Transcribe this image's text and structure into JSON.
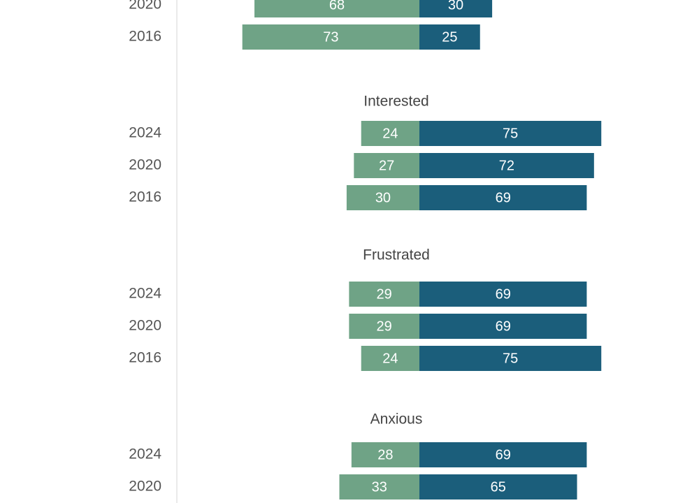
{
  "chart_data": {
    "type": "bar",
    "orientation": "horizontal-diverging",
    "colors": {
      "left_series": "#6fa386",
      "right_series": "#1b5e7b",
      "axis_line": "#e3e3e3",
      "value_text": "#ffffff",
      "year_text": "#555555",
      "group_text": "#444444"
    },
    "groups": [
      {
        "label": "",
        "rows": [
          {
            "year": "2020",
            "left": 68,
            "right": 30
          },
          {
            "year": "2016",
            "left": 73,
            "right": 25
          }
        ]
      },
      {
        "label": "Interested",
        "rows": [
          {
            "year": "2024",
            "left": 24,
            "right": 75
          },
          {
            "year": "2020",
            "left": 27,
            "right": 72
          },
          {
            "year": "2016",
            "left": 30,
            "right": 69
          }
        ]
      },
      {
        "label": "Frustrated",
        "rows": [
          {
            "year": "2024",
            "left": 29,
            "right": 69
          },
          {
            "year": "2020",
            "left": 29,
            "right": 69
          },
          {
            "year": "2016",
            "left": 24,
            "right": 75
          }
        ]
      },
      {
        "label": "Anxious",
        "rows": [
          {
            "year": "2024",
            "left": 28,
            "right": 69
          },
          {
            "year": "2020",
            "left": 33,
            "right": 65
          }
        ]
      }
    ]
  }
}
